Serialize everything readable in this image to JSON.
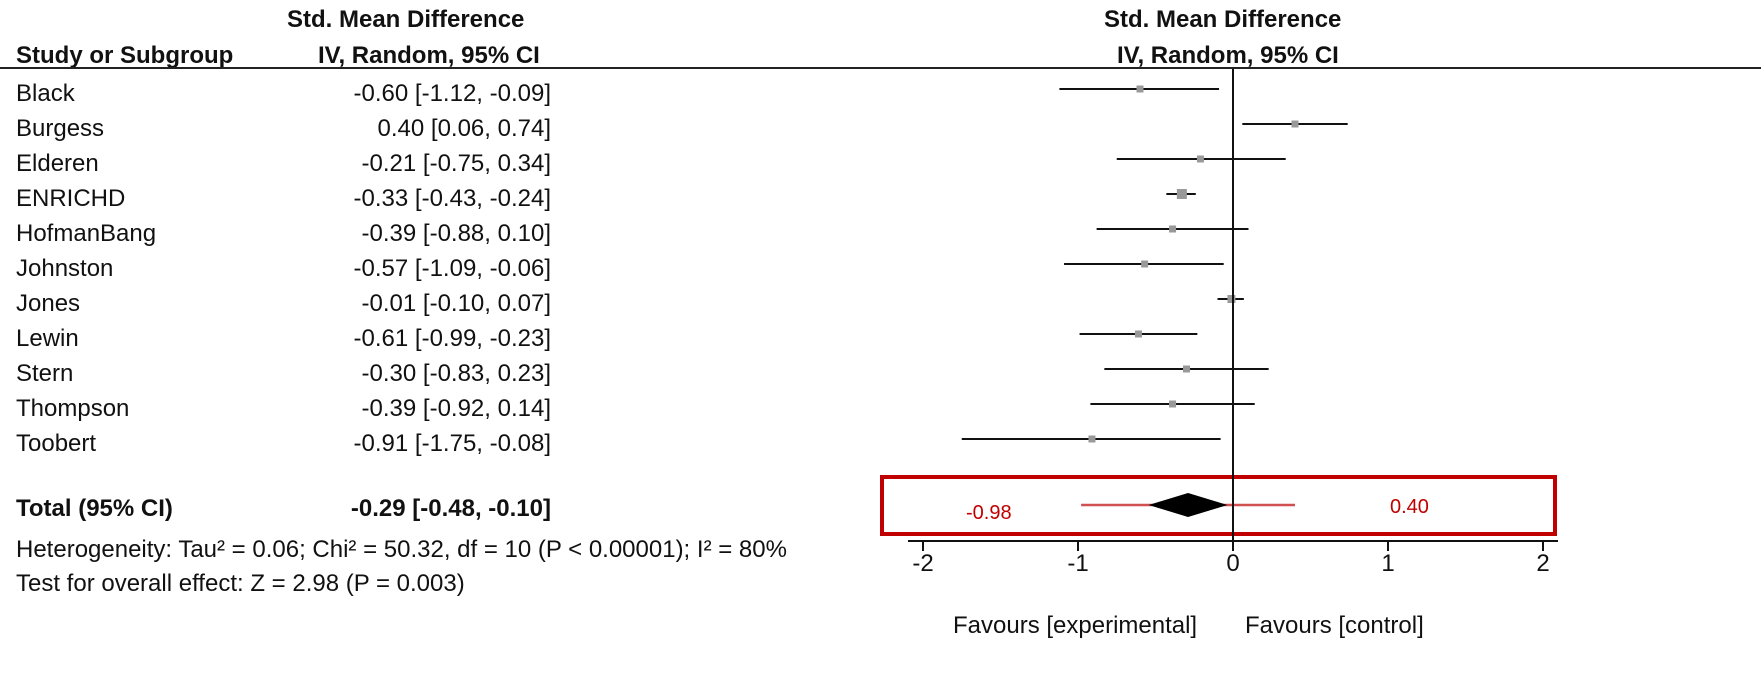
{
  "header": {
    "col_study": "Study or Subgroup",
    "col_effect_line1": "Std. Mean Difference",
    "col_effect_line2": "IV, Random, 95% CI",
    "plot_line1": "Std. Mean Difference",
    "plot_line2": "IV, Random, 95% CI"
  },
  "studies": [
    {
      "name": "Black",
      "ci_text": "-0.60 [-1.12, -0.09]"
    },
    {
      "name": "Burgess",
      "ci_text": "0.40 [0.06, 0.74]"
    },
    {
      "name": "Elderen",
      "ci_text": "-0.21 [-0.75, 0.34]"
    },
    {
      "name": "ENRICHD",
      "ci_text": "-0.33 [-0.43, -0.24]"
    },
    {
      "name": "HofmanBang",
      "ci_text": "-0.39 [-0.88, 0.10]"
    },
    {
      "name": "Johnston",
      "ci_text": "-0.57 [-1.09, -0.06]"
    },
    {
      "name": "Jones",
      "ci_text": "-0.01 [-0.10, 0.07]"
    },
    {
      "name": "Lewin",
      "ci_text": "-0.61 [-0.99, -0.23]"
    },
    {
      "name": "Stern",
      "ci_text": "-0.30 [-0.83, 0.23]"
    },
    {
      "name": "Thompson",
      "ci_text": "-0.39 [-0.92, 0.14]"
    },
    {
      "name": "Toobert",
      "ci_text": "-0.91 [-1.75, -0.08]"
    }
  ],
  "total": {
    "label": "Total (95% CI)",
    "ci_text": "-0.29 [-0.48, -0.10]"
  },
  "heterogeneity_text": "Heterogeneity: Tau² = 0.06; Chi² = 50.32, df = 10 (P < 0.00001); I² = 80%",
  "overall_effect_text": "Test for overall effect: Z = 2.98 (P = 0.003)",
  "favours_left": "Favours [experimental]",
  "favours_right": "Favours [control]",
  "annotation": {
    "left_value": "-0.98",
    "right_value": "0.40",
    "box_color": "#c00000",
    "line_color": "#d05050"
  },
  "colors": {
    "ci_line": "#111111",
    "point": "#999999",
    "diamond": "#000000",
    "axis": "#111111"
  },
  "chart_data": {
    "type": "forest",
    "xlim": [
      -2,
      2
    ],
    "xticks": [
      -2,
      -1,
      0,
      1,
      2
    ],
    "studies": [
      {
        "name": "Black",
        "est": -0.6,
        "lo": -1.12,
        "hi": -0.09
      },
      {
        "name": "Burgess",
        "est": 0.4,
        "lo": 0.06,
        "hi": 0.74
      },
      {
        "name": "Elderen",
        "est": -0.21,
        "lo": -0.75,
        "hi": 0.34
      },
      {
        "name": "ENRICHD",
        "est": -0.33,
        "lo": -0.43,
        "hi": -0.24
      },
      {
        "name": "HofmanBang",
        "est": -0.39,
        "lo": -0.88,
        "hi": 0.1
      },
      {
        "name": "Johnston",
        "est": -0.57,
        "lo": -1.09,
        "hi": -0.06
      },
      {
        "name": "Jones",
        "est": -0.01,
        "lo": -0.1,
        "hi": 0.07
      },
      {
        "name": "Lewin",
        "est": -0.61,
        "lo": -0.99,
        "hi": -0.23
      },
      {
        "name": "Stern",
        "est": -0.3,
        "lo": -0.83,
        "hi": 0.23
      },
      {
        "name": "Thompson",
        "est": -0.39,
        "lo": -0.92,
        "hi": 0.14
      },
      {
        "name": "Toobert",
        "est": -0.91,
        "lo": -1.75,
        "hi": -0.08
      }
    ],
    "pooled": {
      "est": -0.29,
      "lo": -0.48,
      "hi": -0.1
    },
    "prediction_interval": {
      "lo": -0.98,
      "hi": 0.4
    }
  }
}
